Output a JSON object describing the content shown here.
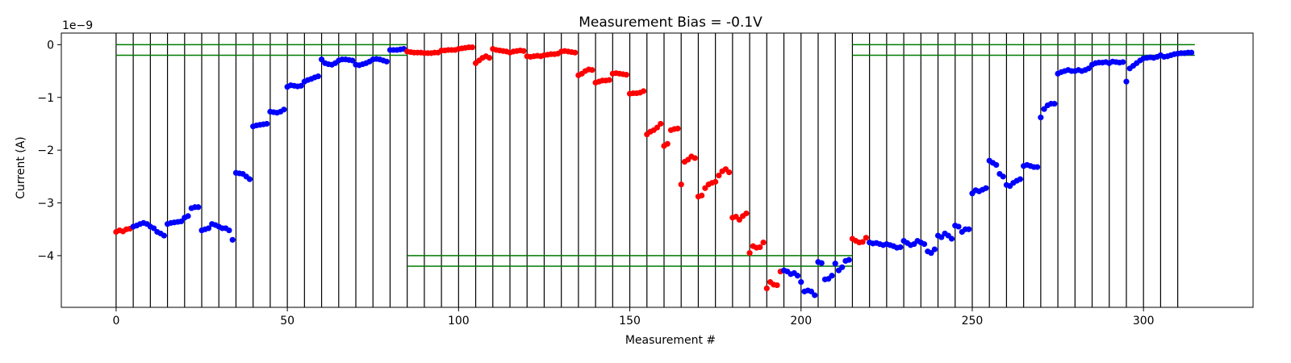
{
  "chart_data": {
    "type": "scatter",
    "title": "Measurement Bias = -0.1V",
    "xlabel": "Measurement #",
    "ylabel": "Current (A)",
    "y_offset_label": "1e−9",
    "xlim": [
      -16,
      332
    ],
    "ylim": [
      -4.98,
      0.22
    ],
    "x_ticks": [
      0,
      50,
      100,
      150,
      200,
      250,
      300
    ],
    "x_tick_labels": [
      "0",
      "50",
      "100",
      "150",
      "200",
      "250",
      "300"
    ],
    "y_ticks": [
      0,
      -1,
      -2,
      -3,
      -4
    ],
    "y_tick_labels": [
      "0",
      "−1",
      "−2",
      "−3",
      "−4"
    ],
    "colors": {
      "red": "#ff0000",
      "blue": "#0000ff",
      "green": "#007a00",
      "vline": "#000000"
    },
    "vlines": [
      0,
      5,
      10,
      15,
      20,
      25,
      30,
      35,
      40,
      45,
      50,
      55,
      60,
      65,
      70,
      75,
      80,
      85,
      90,
      95,
      100,
      105,
      110,
      115,
      120,
      125,
      130,
      135,
      140,
      145,
      150,
      155,
      160,
      165,
      170,
      175,
      180,
      185,
      190,
      195,
      200,
      205,
      210,
      215,
      220,
      225,
      230,
      235,
      240,
      245,
      250,
      255,
      260,
      265,
      270,
      275,
      280,
      285,
      290,
      295,
      300,
      305,
      310
    ],
    "hlines": [
      {
        "y": 0.0,
        "xmin": 0,
        "xmax": 85
      },
      {
        "y": -0.2,
        "xmin": 0,
        "xmax": 85
      },
      {
        "y": -4.0,
        "xmin": 85,
        "xmax": 215
      },
      {
        "y": -4.2,
        "xmin": 85,
        "xmax": 215
      },
      {
        "y": 0.0,
        "xmin": 215,
        "xmax": 315
      },
      {
        "y": -0.2,
        "xmin": 215,
        "xmax": 315
      }
    ],
    "segments": [
      {
        "x0": 0,
        "color": "red",
        "values": [
          -3.55,
          -3.52,
          -3.54,
          -3.5,
          -3.49
        ]
      },
      {
        "x0": 5,
        "color": "blue",
        "values": [
          -3.45,
          -3.43,
          -3.4,
          -3.38,
          -3.4
        ]
      },
      {
        "x0": 10,
        "color": "blue",
        "values": [
          -3.45,
          -3.48,
          -3.55,
          -3.58,
          -3.62
        ]
      },
      {
        "x0": 15,
        "color": "blue",
        "values": [
          -3.4,
          -3.38,
          -3.37,
          -3.36,
          -3.35
        ]
      },
      {
        "x0": 20,
        "color": "blue",
        "values": [
          -3.28,
          -3.25,
          -3.1,
          -3.08,
          -3.08
        ]
      },
      {
        "x0": 25,
        "color": "blue",
        "values": [
          -3.52,
          -3.5,
          -3.48,
          -3.4,
          -3.42
        ]
      },
      {
        "x0": 30,
        "color": "blue",
        "values": [
          -3.45,
          -3.48,
          -3.48,
          -3.52,
          -3.7
        ]
      },
      {
        "x0": 35,
        "color": "blue",
        "values": [
          -2.43,
          -2.44,
          -2.45,
          -2.5,
          -2.55
        ]
      },
      {
        "x0": 40,
        "color": "blue",
        "values": [
          -1.55,
          -1.53,
          -1.52,
          -1.51,
          -1.5
        ]
      },
      {
        "x0": 45,
        "color": "blue",
        "values": [
          -1.27,
          -1.28,
          -1.29,
          -1.27,
          -1.23
        ]
      },
      {
        "x0": 50,
        "color": "blue",
        "values": [
          -0.8,
          -0.77,
          -0.78,
          -0.79,
          -0.78
        ]
      },
      {
        "x0": 55,
        "color": "blue",
        "values": [
          -0.7,
          -0.67,
          -0.65,
          -0.62,
          -0.6
        ]
      },
      {
        "x0": 60,
        "color": "blue",
        "values": [
          -0.28,
          -0.35,
          -0.37,
          -0.38,
          -0.35
        ]
      },
      {
        "x0": 65,
        "color": "blue",
        "values": [
          -0.3,
          -0.28,
          -0.28,
          -0.29,
          -0.3
        ]
      },
      {
        "x0": 70,
        "color": "blue",
        "values": [
          -0.38,
          -0.39,
          -0.37,
          -0.35,
          -0.32
        ]
      },
      {
        "x0": 75,
        "color": "blue",
        "values": [
          -0.28,
          -0.27,
          -0.28,
          -0.3,
          -0.32
        ]
      },
      {
        "x0": 80,
        "color": "blue",
        "values": [
          -0.1,
          -0.1,
          -0.1,
          -0.09,
          -0.08
        ]
      },
      {
        "x0": 85,
        "color": "red",
        "values": [
          -0.13,
          -0.14,
          -0.15,
          -0.15,
          -0.15
        ]
      },
      {
        "x0": 90,
        "color": "red",
        "values": [
          -0.16,
          -0.16,
          -0.16,
          -0.15,
          -0.15
        ]
      },
      {
        "x0": 95,
        "color": "red",
        "values": [
          -0.11,
          -0.11,
          -0.1,
          -0.1,
          -0.1
        ]
      },
      {
        "x0": 100,
        "color": "red",
        "values": [
          -0.08,
          -0.07,
          -0.06,
          -0.05,
          -0.05
        ]
      },
      {
        "x0": 105,
        "color": "red",
        "values": [
          -0.35,
          -0.3,
          -0.25,
          -0.22,
          -0.25
        ]
      },
      {
        "x0": 110,
        "color": "red",
        "values": [
          -0.08,
          -0.1,
          -0.11,
          -0.12,
          -0.13
        ]
      },
      {
        "x0": 115,
        "color": "red",
        "values": [
          -0.15,
          -0.13,
          -0.12,
          -0.11,
          -0.12
        ]
      },
      {
        "x0": 120,
        "color": "red",
        "values": [
          -0.22,
          -0.23,
          -0.22,
          -0.21,
          -0.22
        ]
      },
      {
        "x0": 125,
        "color": "red",
        "values": [
          -0.2,
          -0.19,
          -0.18,
          -0.18,
          -0.17
        ]
      },
      {
        "x0": 130,
        "color": "red",
        "values": [
          -0.13,
          -0.12,
          -0.13,
          -0.14,
          -0.15
        ]
      },
      {
        "x0": 135,
        "color": "red",
        "values": [
          -0.58,
          -0.55,
          -0.5,
          -0.47,
          -0.48
        ]
      },
      {
        "x0": 140,
        "color": "red",
        "values": [
          -0.72,
          -0.7,
          -0.68,
          -0.68,
          -0.67
        ]
      },
      {
        "x0": 145,
        "color": "red",
        "values": [
          -0.55,
          -0.54,
          -0.55,
          -0.56,
          -0.57
        ]
      },
      {
        "x0": 150,
        "color": "red",
        "values": [
          -0.93,
          -0.92,
          -0.92,
          -0.91,
          -0.88
        ]
      },
      {
        "x0": 155,
        "color": "red",
        "values": [
          -1.7,
          -1.65,
          -1.62,
          -1.57,
          -1.5
        ]
      },
      {
        "x0": 160,
        "color": "red",
        "values": [
          -1.92,
          -1.88,
          -1.62,
          -1.6,
          -1.59
        ]
      },
      {
        "x0": 165,
        "color": "red",
        "values": [
          -2.65,
          -2.22,
          -2.18,
          -2.12,
          -2.15
        ]
      },
      {
        "x0": 170,
        "color": "red",
        "values": [
          -2.88,
          -2.86,
          -2.72,
          -2.65,
          -2.62
        ]
      },
      {
        "x0": 175,
        "color": "red",
        "values": [
          -2.6,
          -2.48,
          -2.4,
          -2.36,
          -2.42
        ]
      },
      {
        "x0": 180,
        "color": "red",
        "values": [
          -3.28,
          -3.26,
          -3.32,
          -3.25,
          -3.2
        ]
      },
      {
        "x0": 185,
        "color": "red",
        "values": [
          -3.95,
          -3.82,
          -3.85,
          -3.84,
          -3.75
        ]
      },
      {
        "x0": 190,
        "color": "red",
        "values": [
          -4.62,
          -4.5,
          -4.55,
          -4.56,
          -4.3
        ]
      },
      {
        "x0": 195,
        "color": "blue",
        "values": [
          -4.28,
          -4.3,
          -4.35,
          -4.33,
          -4.38
        ]
      },
      {
        "x0": 200,
        "color": "blue",
        "values": [
          -4.5,
          -4.68,
          -4.66,
          -4.68,
          -4.75
        ]
      },
      {
        "x0": 205,
        "color": "blue",
        "values": [
          -4.12,
          -4.14,
          -4.45,
          -4.44,
          -4.38
        ]
      },
      {
        "x0": 210,
        "color": "blue",
        "values": [
          -4.15,
          -4.28,
          -4.22,
          -4.1,
          -4.08
        ]
      },
      {
        "x0": 215,
        "color": "red",
        "values": [
          -3.68,
          -3.72,
          -3.75,
          -3.74,
          -3.66
        ]
      },
      {
        "x0": 220,
        "color": "blue",
        "values": [
          -3.75,
          -3.77,
          -3.76,
          -3.78,
          -3.8
        ]
      },
      {
        "x0": 225,
        "color": "blue",
        "values": [
          -3.78,
          -3.8,
          -3.82,
          -3.85,
          -3.84
        ]
      },
      {
        "x0": 230,
        "color": "blue",
        "values": [
          -3.72,
          -3.76,
          -3.8,
          -3.78,
          -3.72
        ]
      },
      {
        "x0": 235,
        "color": "blue",
        "values": [
          -3.75,
          -3.78,
          -3.92,
          -3.95,
          -3.88
        ]
      },
      {
        "x0": 240,
        "color": "blue",
        "values": [
          -3.62,
          -3.65,
          -3.58,
          -3.62,
          -3.68
        ]
      },
      {
        "x0": 245,
        "color": "blue",
        "values": [
          -3.43,
          -3.45,
          -3.55,
          -3.5,
          -3.5
        ]
      },
      {
        "x0": 250,
        "color": "blue",
        "values": [
          -2.82,
          -2.76,
          -2.78,
          -2.75,
          -2.72
        ]
      },
      {
        "x0": 255,
        "color": "blue",
        "values": [
          -2.2,
          -2.24,
          -2.28,
          -2.45,
          -2.5
        ]
      },
      {
        "x0": 260,
        "color": "blue",
        "values": [
          -2.66,
          -2.68,
          -2.62,
          -2.58,
          -2.55
        ]
      },
      {
        "x0": 265,
        "color": "blue",
        "values": [
          -2.3,
          -2.28,
          -2.3,
          -2.32,
          -2.32
        ]
      },
      {
        "x0": 270,
        "color": "blue",
        "values": [
          -1.38,
          -1.22,
          -1.15,
          -1.12,
          -1.12
        ]
      },
      {
        "x0": 275,
        "color": "blue",
        "values": [
          -0.55,
          -0.52,
          -0.5,
          -0.48,
          -0.5
        ]
      },
      {
        "x0": 280,
        "color": "blue",
        "values": [
          -0.5,
          -0.48,
          -0.5,
          -0.48,
          -0.45
        ]
      },
      {
        "x0": 285,
        "color": "blue",
        "values": [
          -0.38,
          -0.35,
          -0.34,
          -0.34,
          -0.33
        ]
      },
      {
        "x0": 290,
        "color": "blue",
        "values": [
          -0.35,
          -0.32,
          -0.33,
          -0.34,
          -0.33
        ]
      },
      {
        "x0": 295,
        "color": "blue",
        "values": [
          -0.7,
          -0.45,
          -0.4,
          -0.35,
          -0.3
        ]
      },
      {
        "x0": 300,
        "color": "blue",
        "values": [
          -0.26,
          -0.25,
          -0.24,
          -0.25,
          -0.23
        ]
      },
      {
        "x0": 305,
        "color": "blue",
        "values": [
          -0.2,
          -0.23,
          -0.22,
          -0.2,
          -0.18
        ]
      },
      {
        "x0": 310,
        "color": "blue",
        "values": [
          -0.17,
          -0.16,
          -0.16,
          -0.15,
          -0.15
        ]
      }
    ]
  }
}
